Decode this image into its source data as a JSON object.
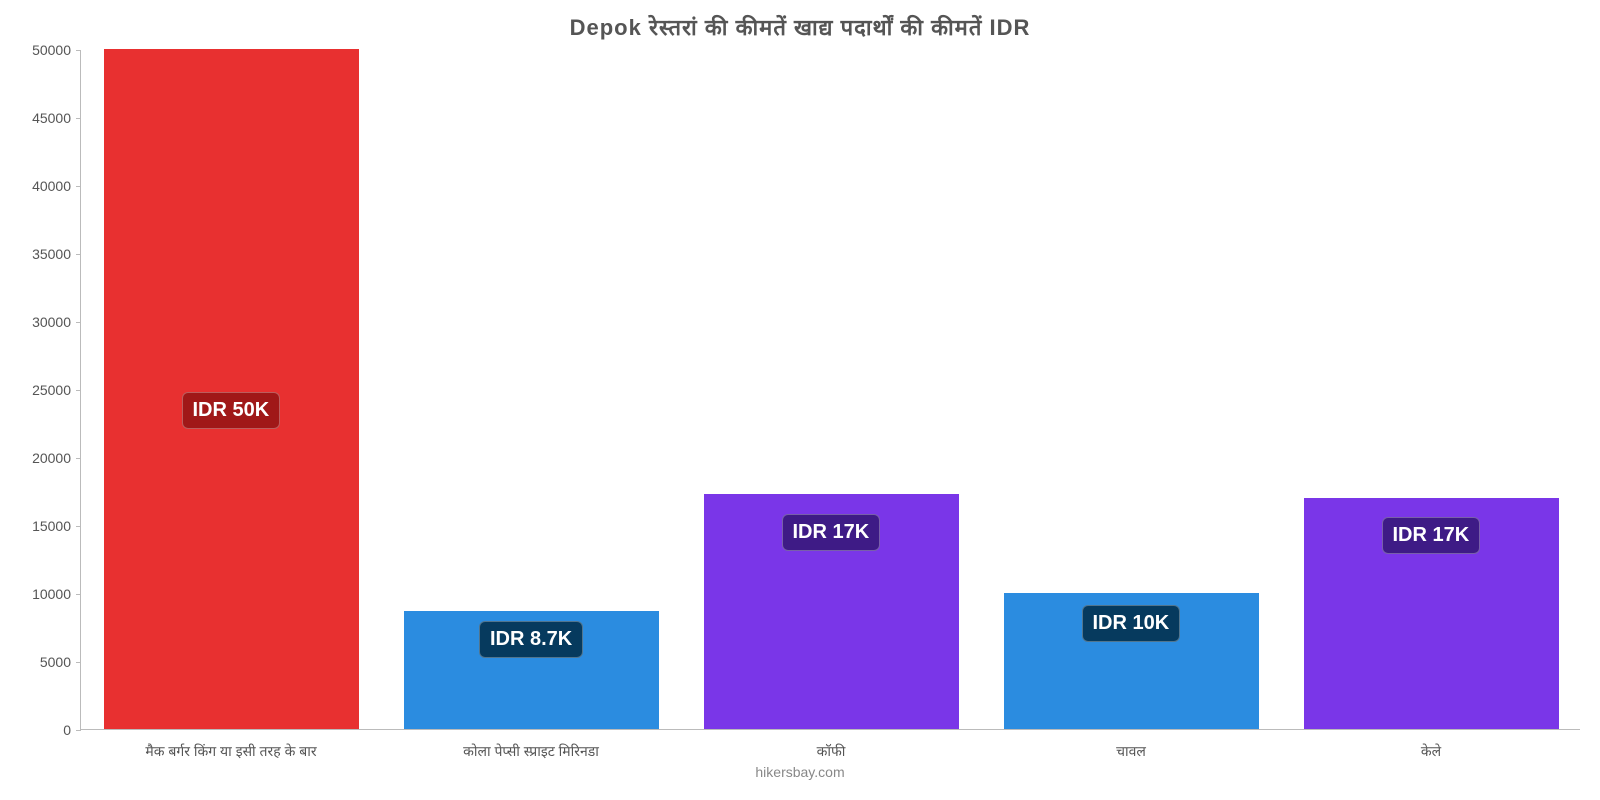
{
  "chart": {
    "type": "bar",
    "title": "Depok रेस्तरां की कीमतें खाद्य पदार्थों की कीमतें IDR",
    "attribution": "hikersbay.com",
    "background_color": "#ffffff",
    "title_color": "#555555",
    "title_fontsize": 22,
    "axis_color": "#bbbbbb",
    "tick_color": "#555555",
    "tick_fontsize": 14,
    "ylim_min": 0,
    "ylim_max": 50000,
    "ytick_step": 5000,
    "bar_width_ratio": 0.85,
    "categories": [
      "मैक बर्गर किंग या इसी तरह के बार",
      "कोला पेप्सी स्प्राइट मिरिनडा",
      "कॉफी",
      "चावल",
      "केले"
    ],
    "values": [
      50000,
      8700,
      17300,
      10000,
      17000
    ],
    "bar_colors": [
      "#e83030",
      "#2b8ce0",
      "#7a36e8",
      "#2b8ce0",
      "#7a36e8"
    ],
    "value_labels": [
      "IDR 50K",
      "IDR 8.7K",
      "IDR 17K",
      "IDR 10K",
      "IDR 17K"
    ],
    "value_label_bg": [
      "#a01818",
      "#063a5e",
      "#3e1b86",
      "#063a5e",
      "#3e1b86"
    ],
    "value_label_fontsize": 20,
    "value_label_positions": [
      "inside-middle",
      "below-top",
      "below-top",
      "below-top",
      "below-top"
    ]
  }
}
